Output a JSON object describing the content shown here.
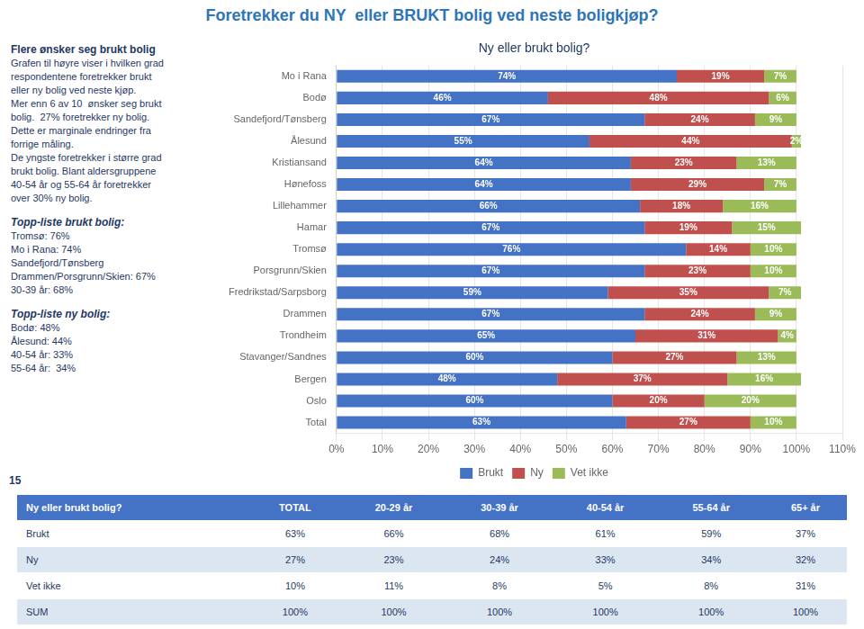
{
  "chart_data": [
    {
      "type": "bar",
      "title": "Foretrekker du NY  eller BRUKT bolig ved neste boligkjøp?",
      "subtitle": "Ny eller brukt bolig?",
      "orientation": "horizontal",
      "stacked": true,
      "data_labels": true,
      "grid": true,
      "legend": "bottom",
      "categories": [
        "Mo i Rana",
        "Bodø",
        "Sandefjord/Tønsberg",
        "Ålesund",
        "Kristiansand",
        "Hønefoss",
        "Lillehammer",
        "Hamar",
        "Tromsø",
        "Porsgrunn/Skien",
        "Fredrikstad/Sarpsborg",
        "Drammen",
        "Trondheim",
        "Stavanger/Sandnes",
        "Bergen",
        "Oslo",
        "Total"
      ],
      "series": [
        {
          "name": "Brukt",
          "color": "#4472C4",
          "values": [
            74,
            46,
            67,
            55,
            64,
            64,
            66,
            67,
            76,
            67,
            59,
            67,
            65,
            60,
            48,
            60,
            63
          ],
          "value_labels": [
            "74%",
            "46%",
            "67%",
            "55%",
            "64%",
            "64%",
            "66%",
            "67%",
            "76%",
            "67%",
            "59%",
            "67%",
            "65%",
            "60%",
            "48%",
            "60%",
            "63%"
          ]
        },
        {
          "name": "Ny",
          "color": "#C0504D",
          "values": [
            19,
            48,
            24,
            44,
            23,
            29,
            18,
            19,
            14,
            23,
            35,
            24,
            31,
            27,
            37,
            20,
            27
          ],
          "value_labels": [
            "19%",
            "48%",
            "24%",
            "44%",
            "23%",
            "29%",
            "18%",
            "19%",
            "14%",
            "23%",
            "35%",
            "24%",
            "31%",
            "27%",
            "37%",
            "20%",
            "27%"
          ]
        },
        {
          "name": "Vet ikke",
          "color": "#9BBB59",
          "values": [
            7,
            6,
            9,
            2,
            13,
            7,
            16,
            15,
            10,
            10,
            7,
            9,
            4,
            13,
            16,
            20,
            10
          ],
          "value_labels": [
            "7%",
            "6%",
            "9%",
            "2%",
            "13%",
            "7%",
            "16%",
            "15%",
            "10%",
            "10%",
            "7%",
            "9%",
            "4%",
            "13%",
            "16%",
            "20%",
            "10%"
          ]
        }
      ],
      "xlim": [
        0,
        110
      ],
      "xticks": [
        {
          "value": 0,
          "label": "0%"
        },
        {
          "value": 10,
          "label": "10%"
        },
        {
          "value": 20,
          "label": "20%"
        },
        {
          "value": 30,
          "label": "30%"
        },
        {
          "value": 40,
          "label": "40%"
        },
        {
          "value": 50,
          "label": "50%"
        },
        {
          "value": 60,
          "label": "60%"
        },
        {
          "value": 70,
          "label": "70%"
        },
        {
          "value": 80,
          "label": "80%"
        },
        {
          "value": 90,
          "label": "90%"
        },
        {
          "value": 100,
          "label": "100%"
        },
        {
          "value": 110,
          "label": "110%"
        }
      ],
      "annotations": [
        "Flere ønsker seg brukt bolig",
        "Grafen til høyre viser i hvilken grad",
        "respondentene foretrekker brukt",
        "eller ny bolig ved neste kjøp.",
        "Mer enn 6 av 10  ønsker seg brukt",
        "bolig.  27% foretrekker ny bolig.",
        "Dette er marginale endringer fra",
        "forrige måling.",
        "De yngste foretrekker i større grad",
        "brukt bolig. Blant aldersgruppene",
        "40-54 år og 55-64 år foretrekker",
        "over 30% ny bolig.",
        "Topp-liste brukt bolig:",
        "Tromsø: 76%",
        "Mo i Rana: 74%",
        "Sandefjord/Tønsberg",
        "Drammen/Porsgrunn/Skien: 67%",
        "30-39 år: 68%",
        "Topp-liste ny bolig:",
        "Bodø: 48%",
        "Ålesund: 44%",
        "40-54 år: 33%",
        "55-64 år:  34%",
        "15"
      ]
    },
    {
      "type": "table",
      "title": "Ny eller brukt bolig?",
      "categories": [
        "Brukt",
        "Ny",
        "Vet ikke",
        "SUM"
      ],
      "series": [
        {
          "name": "TOTAL",
          "values": [
            63,
            27,
            10,
            100
          ],
          "value_labels": [
            "63%",
            "27%",
            "10%",
            "100%"
          ]
        },
        {
          "name": "20-29 år",
          "values": [
            66,
            23,
            11,
            100
          ],
          "value_labels": [
            "66%",
            "23%",
            "11%",
            "100%"
          ]
        },
        {
          "name": "30-39 år",
          "values": [
            68,
            24,
            8,
            100
          ],
          "value_labels": [
            "68%",
            "24%",
            "8%",
            "100%"
          ]
        },
        {
          "name": "40-54 år",
          "values": [
            61,
            33,
            5,
            100
          ],
          "value_labels": [
            "61%",
            "33%",
            "5%",
            "100%"
          ]
        },
        {
          "name": "55-64 år",
          "values": [
            59,
            34,
            8,
            100
          ],
          "value_labels": [
            "59%",
            "34%",
            "8%",
            "100%"
          ]
        },
        {
          "name": "65+ år",
          "values": [
            37,
            32,
            31,
            100
          ],
          "value_labels": [
            "37%",
            "32%",
            "31%",
            "100%"
          ]
        }
      ]
    }
  ]
}
